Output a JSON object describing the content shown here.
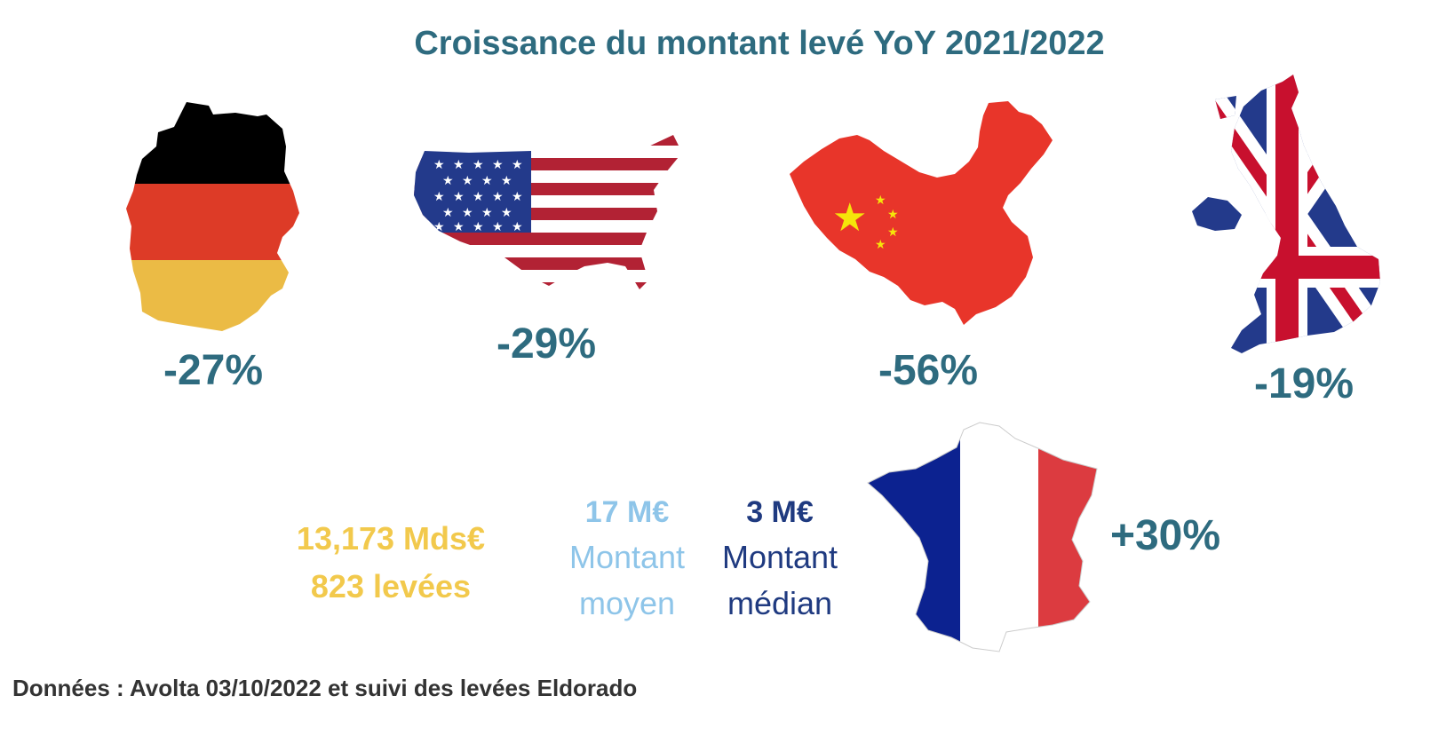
{
  "title": "Croissance du montant levé YoY 2021/2022",
  "countries": {
    "germany": {
      "growth": "-27%",
      "flag_colors": [
        "#000000",
        "#dd3b27",
        "#ebbb45"
      ]
    },
    "usa": {
      "growth": "-29%",
      "flag_colors": [
        "#b22234",
        "#ffffff",
        "#233a8b"
      ]
    },
    "china": {
      "growth": "-56%",
      "flag_colors": [
        "#e8352a",
        "#f5e50a"
      ]
    },
    "uk": {
      "growth": "-19%",
      "flag_colors": [
        "#233a8b",
        "#ffffff",
        "#c8102e"
      ]
    },
    "france": {
      "growth": "+30%",
      "flag_colors": [
        "#0c2290",
        "#ffffff",
        "#dc3b40"
      ]
    }
  },
  "france_stats": {
    "total_amount": "13,173  Mds€",
    "deal_count": "823 levées",
    "average": {
      "value": "17 M€",
      "label_line1": "Montant",
      "label_line2": "moyen"
    },
    "median": {
      "value": "3 M€",
      "label_line1": "Montant",
      "label_line2": "médian"
    }
  },
  "source": "Données : Avolta 03/10/2022 et suivi des levées Eldorado",
  "colors": {
    "title": "#2e6b7f",
    "percent": "#2e6b7f",
    "stat_total": "#f2c94c",
    "stat_average": "#8ec5e9",
    "stat_median": "#1f3a80",
    "source": "#333333"
  }
}
